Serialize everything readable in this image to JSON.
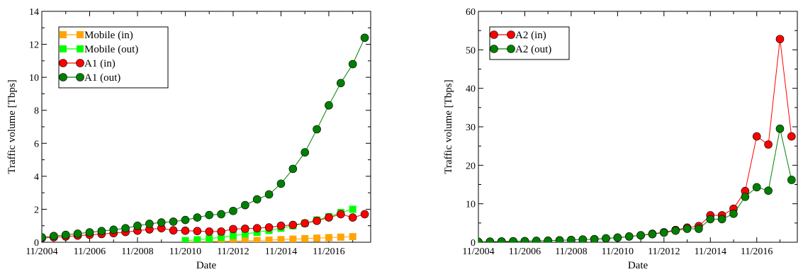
{
  "chart_data": [
    {
      "type": "line",
      "xlabel": "Date",
      "ylabel": "Traffic volume [Tbps]",
      "ylim": [
        0,
        14
      ],
      "y_ticks": [
        0,
        2,
        4,
        6,
        8,
        10,
        12,
        14
      ],
      "x_ticks": [
        "11/2004",
        "11/2006",
        "11/2008",
        "11/2010",
        "11/2012",
        "11/2014",
        "11/2016"
      ],
      "legend_position": "top-left",
      "grid": false,
      "series": [
        {
          "name": "Mobile (in)",
          "color": "#FFA500",
          "marker": "square",
          "x": [
            "11/2010",
            "05/2011",
            "11/2011",
            "05/2012",
            "11/2012",
            "05/2013",
            "11/2013",
            "05/2014",
            "11/2014",
            "05/2015",
            "11/2015",
            "05/2016",
            "11/2016",
            "05/2017",
            "11/2017"
          ],
          "values": [
            0.02,
            0.03,
            0.04,
            0.05,
            0.07,
            0.09,
            0.11,
            0.13,
            0.16,
            0.19,
            0.22,
            0.25,
            0.28,
            0.31,
            0.34
          ]
        },
        {
          "name": "Mobile (out)",
          "color": "#00FF00",
          "marker": "square",
          "x": [
            "11/2010",
            "05/2011",
            "11/2011",
            "05/2012",
            "11/2012",
            "05/2013",
            "11/2013",
            "05/2014",
            "11/2014",
            "05/2015",
            "11/2015",
            "05/2016",
            "11/2016",
            "05/2017",
            "11/2017"
          ],
          "values": [
            0.1,
            0.15,
            0.22,
            0.3,
            0.4,
            0.5,
            0.6,
            0.72,
            0.85,
            1.0,
            1.15,
            1.35,
            1.55,
            1.8,
            2.0
          ]
        },
        {
          "name": "A1 (in)",
          "color": "#FF0000",
          "marker": "circle",
          "x": [
            "11/2004",
            "05/2005",
            "11/2005",
            "05/2006",
            "11/2006",
            "05/2007",
            "11/2007",
            "05/2008",
            "11/2008",
            "05/2009",
            "11/2009",
            "05/2010",
            "11/2010",
            "05/2011",
            "11/2011",
            "05/2012",
            "11/2012",
            "05/2013",
            "11/2013",
            "05/2014",
            "11/2014",
            "05/2015",
            "11/2015",
            "05/2016",
            "11/2016",
            "05/2017",
            "11/2017",
            "05/2018"
          ],
          "values": [
            0.25,
            0.3,
            0.35,
            0.4,
            0.45,
            0.5,
            0.55,
            0.62,
            0.7,
            0.78,
            0.85,
            0.72,
            0.7,
            0.68,
            0.65,
            0.65,
            0.8,
            0.82,
            0.85,
            0.9,
            1.0,
            1.05,
            1.15,
            1.3,
            1.5,
            1.7,
            1.5,
            1.7
          ]
        },
        {
          "name": "A1 (out)",
          "color": "#008000",
          "marker": "circle",
          "x": [
            "11/2004",
            "05/2005",
            "11/2005",
            "05/2006",
            "11/2006",
            "05/2007",
            "11/2007",
            "05/2008",
            "11/2008",
            "05/2009",
            "11/2009",
            "05/2010",
            "11/2010",
            "05/2011",
            "11/2011",
            "05/2012",
            "11/2012",
            "05/2013",
            "11/2013",
            "05/2014",
            "11/2014",
            "05/2015",
            "11/2015",
            "05/2016",
            "11/2016",
            "05/2017",
            "11/2017",
            "05/2018"
          ],
          "values": [
            0.3,
            0.38,
            0.45,
            0.52,
            0.6,
            0.68,
            0.76,
            0.85,
            1.0,
            1.12,
            1.2,
            1.25,
            1.35,
            1.5,
            1.65,
            1.7,
            1.9,
            2.25,
            2.6,
            2.9,
            3.55,
            4.45,
            5.45,
            6.85,
            8.3,
            9.65,
            10.8,
            12.4
          ]
        }
      ]
    },
    {
      "type": "line",
      "xlabel": "Date",
      "ylabel": "Traffic volume [Tbps]",
      "ylim": [
        0,
        60
      ],
      "y_ticks": [
        0,
        10,
        20,
        30,
        40,
        50,
        60
      ],
      "x_ticks": [
        "11/2004",
        "11/2006",
        "11/2008",
        "11/2010",
        "11/2012",
        "11/2014",
        "11/2016"
      ],
      "legend_position": "top-left",
      "grid": false,
      "series": [
        {
          "name": "A2 (in)",
          "color": "#FF0000",
          "marker": "circle",
          "x": [
            "11/2004",
            "05/2005",
            "11/2005",
            "05/2006",
            "11/2006",
            "05/2007",
            "11/2007",
            "05/2008",
            "11/2008",
            "05/2009",
            "11/2009",
            "05/2010",
            "11/2010",
            "05/2011",
            "11/2011",
            "05/2012",
            "11/2012",
            "05/2013",
            "11/2013",
            "05/2014",
            "11/2014",
            "05/2015",
            "11/2015",
            "05/2016",
            "11/2016",
            "05/2017",
            "11/2017",
            "05/2018"
          ],
          "values": [
            0.1,
            0.15,
            0.2,
            0.25,
            0.3,
            0.35,
            0.4,
            0.5,
            0.6,
            0.7,
            0.8,
            1.0,
            1.2,
            1.5,
            1.8,
            2.2,
            2.6,
            3.2,
            3.8,
            4.2,
            7.0,
            7.0,
            8.7,
            13.3,
            27.5,
            25.4,
            52.8,
            27.5
          ]
        },
        {
          "name": "A2 (out)",
          "color": "#008000",
          "marker": "circle",
          "x": [
            "11/2004",
            "05/2005",
            "11/2005",
            "05/2006",
            "11/2006",
            "05/2007",
            "11/2007",
            "05/2008",
            "11/2008",
            "05/2009",
            "11/2009",
            "05/2010",
            "11/2010",
            "05/2011",
            "11/2011",
            "05/2012",
            "11/2012",
            "05/2013",
            "11/2013",
            "05/2014",
            "11/2014",
            "05/2015",
            "11/2015",
            "05/2016",
            "11/2016",
            "05/2017",
            "11/2017",
            "05/2018"
          ],
          "values": [
            0.1,
            0.15,
            0.2,
            0.25,
            0.3,
            0.35,
            0.4,
            0.5,
            0.6,
            0.7,
            0.8,
            1.0,
            1.2,
            1.5,
            1.8,
            2.1,
            2.5,
            3.0,
            3.5,
            3.5,
            6.0,
            6.0,
            7.4,
            11.8,
            14.3,
            13.4,
            29.5,
            16.2
          ]
        }
      ]
    }
  ]
}
